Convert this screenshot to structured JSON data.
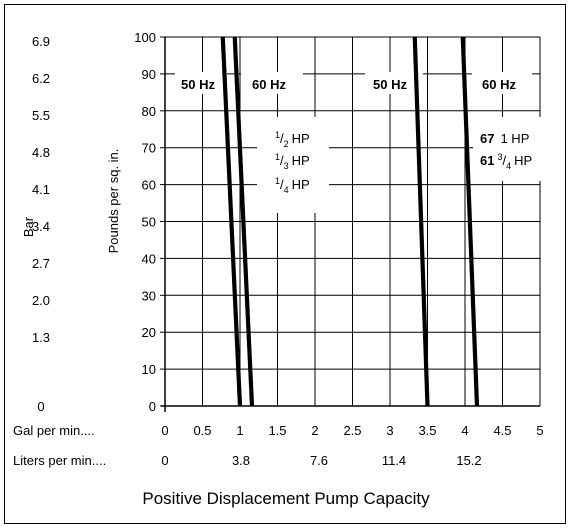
{
  "chart_data": {
    "type": "line",
    "title": "Positive Displacement Pump Capacity",
    "y_primary": {
      "label": "Pounds per sq. in.",
      "ticks": [
        "0",
        "10",
        "20",
        "30",
        "40",
        "50",
        "60",
        "70",
        "80",
        "90",
        "100"
      ],
      "range": [
        0,
        100
      ]
    },
    "y_secondary": {
      "label": "Bar",
      "ticks": [
        "0",
        "1.3",
        "2.0",
        "2.7",
        "3.4",
        "4.1",
        "4.8",
        "5.5",
        "6.2",
        "6.9"
      ]
    },
    "x_primary": {
      "label": "Gal per min....",
      "ticks": [
        "0",
        "0.5",
        "1",
        "1.5",
        "2",
        "2.5",
        "3",
        "3.5",
        "4",
        "4.5",
        "5"
      ],
      "range": [
        0,
        5
      ]
    },
    "x_secondary": {
      "label": "Liters per min....",
      "ticks": [
        "0",
        "3.8",
        "7.6",
        "11.4",
        "15.2"
      ]
    },
    "grid": true,
    "series": [
      {
        "name": "50 Hz",
        "x": [
          0.77,
          1.0
        ],
        "y": [
          100,
          0
        ]
      },
      {
        "name": "60 Hz",
        "x": [
          0.93,
          1.16
        ],
        "y": [
          100,
          0
        ]
      },
      {
        "name": "50 Hz",
        "x": [
          3.33,
          3.5
        ],
        "y": [
          100,
          0
        ]
      },
      {
        "name": "60 Hz",
        "x": [
          3.97,
          4.16
        ],
        "y": [
          100,
          0
        ]
      }
    ],
    "annotations": {
      "hz_labels": [
        "50 Hz",
        "60 Hz",
        "50 Hz",
        "60 Hz"
      ],
      "hp_left": [
        {
          "num": "1",
          "den": "2",
          "unit": "HP"
        },
        {
          "num": "1",
          "den": "3",
          "unit": "HP"
        },
        {
          "num": "1",
          "den": "4",
          "unit": "HP"
        }
      ],
      "hp_right": [
        {
          "model": "67",
          "rating": "1 HP"
        },
        {
          "model": "61",
          "num": "3",
          "den": "4",
          "unit": "HP"
        }
      ]
    }
  }
}
